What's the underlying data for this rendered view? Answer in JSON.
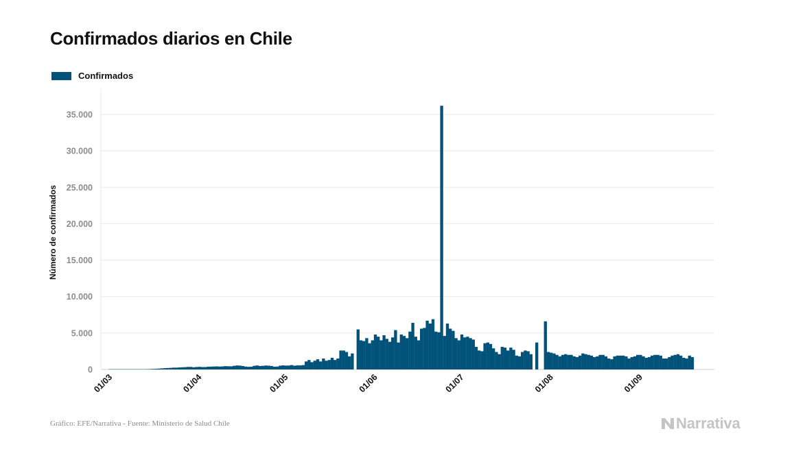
{
  "header": {
    "title": "Confirmados diarios en Chile"
  },
  "legend": {
    "label": "Confirmados",
    "color": "#03527a"
  },
  "footer": {
    "source": "Gráfico: EFE/Narrativa - Fuente: Ministerio de Salud Chile",
    "brand": "Narrativa"
  },
  "chart_data": {
    "type": "bar",
    "title": "Confirmados diarios en Chile",
    "ylabel": "Número de confirmados",
    "xlabel": "",
    "ylim": [
      0,
      37000
    ],
    "grid": true,
    "legend_position": "top-left",
    "yticks": [
      0,
      5000,
      10000,
      15000,
      20000,
      25000,
      30000,
      35000
    ],
    "ytick_labels": [
      "0",
      "5.000",
      "10.000",
      "15.000",
      "20.000",
      "25.000",
      "30.000",
      "35.000"
    ],
    "x_tick_labels": [
      "01/03",
      "01/04",
      "01/05",
      "01/06",
      "01/07",
      "01/08",
      "01/09"
    ],
    "x_tick_day_index": [
      0,
      31,
      61,
      92,
      122,
      153,
      184
    ],
    "start_date": "2020-03-01",
    "series": [
      {
        "name": "Confirmados",
        "color": "#03527a",
        "values": [
          null,
          null,
          1,
          3,
          2,
          2,
          3,
          3,
          7,
          10,
          10,
          10,
          18,
          22,
          20,
          50,
          60,
          80,
          100,
          120,
          150,
          180,
          200,
          220,
          250,
          250,
          280,
          300,
          320,
          350,
          350,
          300,
          340,
          360,
          330,
          330,
          380,
          390,
          410,
          420,
          400,
          420,
          460,
          440,
          430,
          500,
          550,
          530,
          480,
          400,
          360,
          380,
          500,
          550,
          480,
          500,
          540,
          520,
          480,
          380,
          400,
          520,
          560,
          530,
          540,
          600,
          520,
          560,
          560,
          600,
          1100,
          1300,
          1000,
          1200,
          1400,
          1100,
          1500,
          1200,
          1300,
          1600,
          1300,
          1500,
          2600,
          2600,
          2400,
          1800,
          2200,
          null,
          5500,
          4000,
          3900,
          4300,
          3600,
          4000,
          4800,
          4500,
          4000,
          4700,
          4200,
          3800,
          4400,
          5400,
          3700,
          4800,
          4600,
          4300,
          5200,
          6400,
          4500,
          4000,
          5600,
          5700,
          6700,
          6300,
          6900,
          5200,
          5100,
          36200,
          4600,
          6300,
          5600,
          5300,
          4300,
          4000,
          4800,
          4400,
          4500,
          4300,
          4100,
          3100,
          2600,
          2500,
          3600,
          3700,
          3500,
          2900,
          2400,
          2100,
          3100,
          3000,
          2600,
          3000,
          2700,
          1900,
          1800,
          2400,
          2600,
          2500,
          2100,
          null,
          3700,
          null,
          null,
          6600,
          2400,
          2300,
          2200,
          2000,
          1800,
          2000,
          2100,
          2000,
          2000,
          1800,
          1700,
          1900,
          2200,
          2100,
          2000,
          1900,
          1700,
          1800,
          2000,
          2000,
          1800,
          1500,
          1400,
          1800,
          1900,
          1900,
          1900,
          1800,
          1500,
          1700,
          1800,
          2000,
          2000,
          1800,
          1600,
          1700,
          1900,
          2000,
          2000,
          1900,
          1500,
          1500,
          1700,
          1900,
          2000,
          2100,
          1900,
          1600,
          1500,
          1900,
          1700
        ]
      }
    ]
  }
}
